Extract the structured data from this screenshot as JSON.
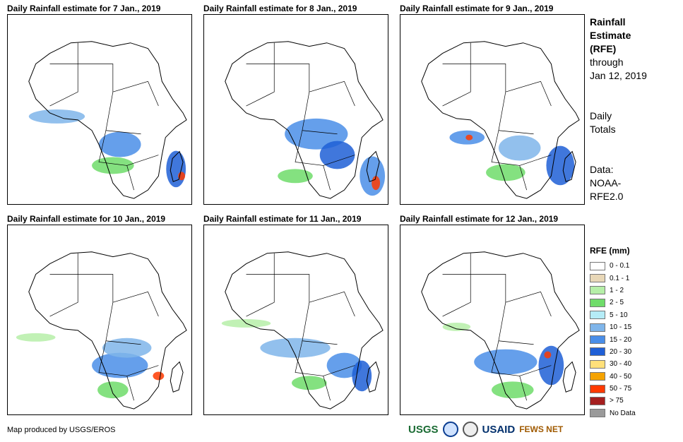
{
  "panels": [
    {
      "title": "Daily Rainfall estimate for 7 Jan., 2019"
    },
    {
      "title": "Daily Rainfall estimate for 8 Jan., 2019"
    },
    {
      "title": "Daily Rainfall estimate for 9 Jan., 2019"
    },
    {
      "title": "Daily Rainfall estimate for 10 Jan., 2019"
    },
    {
      "title": "Daily Rainfall estimate for 11 Jan., 2019"
    },
    {
      "title": "Daily Rainfall estimate for 12 Jan., 2019"
    }
  ],
  "side": {
    "title_line1": "Rainfall",
    "title_line2": "Estimate",
    "title_line3": "(RFE)",
    "through_line1": "through",
    "through_line2": "Jan 12, 2019",
    "totals_line1": "Daily",
    "totals_line2": "Totals",
    "data_line1": "Data:",
    "data_line2": "NOAA-",
    "data_line3": "RFE2.0"
  },
  "legend": {
    "title": "RFE (mm)",
    "items": [
      {
        "label": "0 - 0.1",
        "color": "#ffffff"
      },
      {
        "label": "0.1 - 1",
        "color": "#e8d7b7"
      },
      {
        "label": "1 - 2",
        "color": "#b6efa8"
      },
      {
        "label": "2 - 5",
        "color": "#6fdc6a"
      },
      {
        "label": "5 - 10",
        "color": "#b5ecf7"
      },
      {
        "label": "10 - 15",
        "color": "#7fb5ea"
      },
      {
        "label": "15 - 20",
        "color": "#4a8ee8"
      },
      {
        "label": "20 - 30",
        "color": "#1f5fd6"
      },
      {
        "label": "30 - 40",
        "color": "#ffe07a"
      },
      {
        "label": "40 - 50",
        "color": "#f5a300"
      },
      {
        "label": "50 - 75",
        "color": "#ff3a00"
      },
      {
        "label": "> 75",
        "color": "#a51f1f"
      },
      {
        "label": "No Data",
        "color": "#9a9a9a"
      }
    ]
  },
  "footer": {
    "credit": "Map produced by USGS/EROS",
    "logos": [
      "USGS",
      "NOAA",
      "USAID",
      "FEWS NET"
    ]
  }
}
